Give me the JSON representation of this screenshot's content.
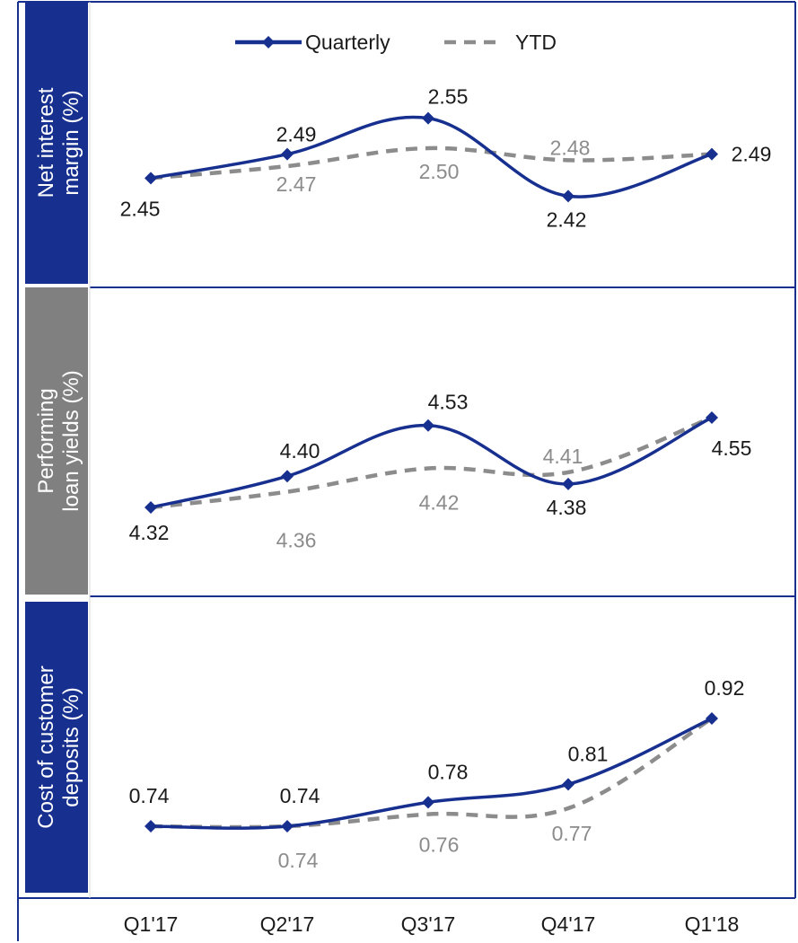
{
  "chart_data": {
    "type": "line",
    "categories": [
      "Q1'17",
      "Q2'17",
      "Q3'17",
      "Q4'17",
      "Q1'18"
    ],
    "legend": {
      "placement": "top",
      "entries": [
        "Quarterly",
        "YTD"
      ]
    },
    "colors": {
      "quarterly": "#17308f",
      "ytd": "#8c8c8c",
      "panel_blue": "#17308f",
      "panel_grey": "#808080",
      "rule": "#17308f"
    },
    "panels": [
      {
        "label": "Net interest margin (%)",
        "label_lines": [
          "Net interest",
          "margin (%)"
        ],
        "label_color": "#17308f",
        "series": [
          {
            "name": "Quarterly",
            "values": [
              2.45,
              2.49,
              2.55,
              2.42,
              2.49
            ],
            "labels": [
              "2.45",
              "2.49",
              "2.55",
              "2.42",
              "2.49"
            ]
          },
          {
            "name": "YTD",
            "values": [
              2.45,
              2.47,
              2.5,
              2.48,
              2.49
            ],
            "labels": [
              "",
              "2.47",
              "2.50",
              "2.48",
              ""
            ]
          }
        ]
      },
      {
        "label": "Performing loan yields (%)",
        "label_lines": [
          "Performing",
          "loan yields (%)"
        ],
        "label_color": "#808080",
        "series": [
          {
            "name": "Quarterly",
            "values": [
              4.32,
              4.4,
              4.53,
              4.38,
              4.55
            ],
            "labels": [
              "4.32",
              "4.40",
              "4.53",
              "4.38",
              "4.55"
            ]
          },
          {
            "name": "YTD",
            "values": [
              4.32,
              4.36,
              4.42,
              4.41,
              4.55
            ],
            "labels": [
              "",
              "4.36",
              "4.42",
              "4.41",
              ""
            ]
          }
        ]
      },
      {
        "label": "Cost of customer deposits (%)",
        "label_lines": [
          "Cost of customer",
          "deposits (%)"
        ],
        "label_color": "#17308f",
        "series": [
          {
            "name": "Quarterly",
            "values": [
              0.74,
              0.74,
              0.78,
              0.81,
              0.92
            ],
            "labels": [
              "0.74",
              "0.74",
              "0.78",
              "0.81",
              "0.92"
            ]
          },
          {
            "name": "YTD",
            "values": [
              0.74,
              0.74,
              0.76,
              0.77,
              0.92
            ],
            "labels": [
              "",
              "0.74",
              "0.76",
              "0.77",
              ""
            ]
          }
        ]
      }
    ]
  }
}
